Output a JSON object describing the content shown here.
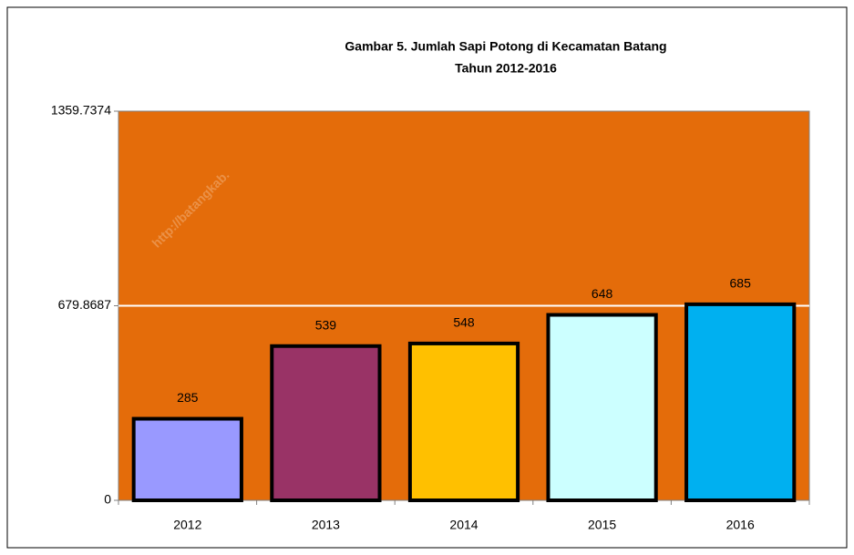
{
  "chart_data": {
    "type": "bar",
    "title": [
      "Gambar 5. Jumlah Sapi Potong di Kecamatan Batang",
      "Tahun 2012-2016"
    ],
    "watermark": "http://batangkab.",
    "categories": [
      "2012",
      "2013",
      "2014",
      "2015",
      "2016"
    ],
    "values": [
      285,
      539,
      548,
      648,
      685
    ],
    "colors": [
      "#9999ff",
      "#993366",
      "#ffc000",
      "#ccffff",
      "#00b0f0"
    ],
    "plot_background": "#e46c0a",
    "ylim": [
      0,
      1359.7374
    ],
    "yticks": [
      0,
      679.8687,
      1359.7374
    ],
    "grid": true
  }
}
